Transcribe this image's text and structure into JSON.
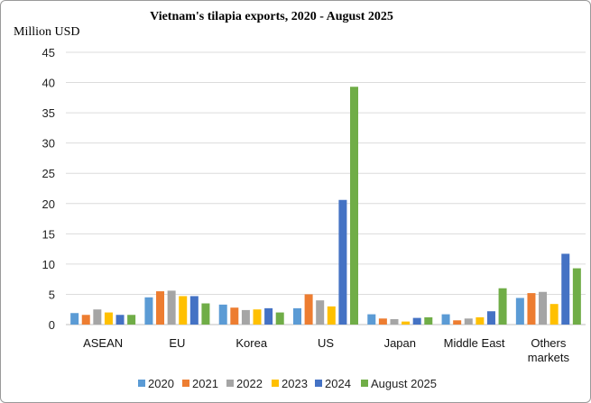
{
  "chart_data": {
    "type": "bar",
    "title": "Vietnam's tilapia exports, 2020 - August 2025",
    "ylabel": "Million USD",
    "xlabel": "",
    "ylim": [
      0,
      45
    ],
    "yticks": [
      0,
      5,
      10,
      15,
      20,
      25,
      30,
      35,
      40,
      45
    ],
    "grid": true,
    "legend_position": "bottom",
    "categories": [
      "ASEAN",
      "EU",
      "Korea",
      "US",
      "Japan",
      "Middle East",
      "Others markets"
    ],
    "series": [
      {
        "name": "2020",
        "color": "#5b9bd5",
        "values": [
          1.9,
          4.5,
          3.3,
          2.7,
          1.7,
          1.7,
          4.4
        ]
      },
      {
        "name": "2021",
        "color": "#ed7d31",
        "values": [
          1.6,
          5.5,
          2.8,
          5.0,
          1.0,
          0.7,
          5.2
        ]
      },
      {
        "name": "2022",
        "color": "#a5a5a5",
        "values": [
          2.5,
          5.6,
          2.4,
          4.0,
          0.9,
          1.0,
          5.4
        ]
      },
      {
        "name": "2023",
        "color": "#ffc000",
        "values": [
          2.0,
          4.7,
          2.5,
          3.0,
          0.5,
          1.2,
          3.4
        ]
      },
      {
        "name": "2024",
        "color": "#4472c4",
        "values": [
          1.6,
          4.7,
          2.7,
          20.6,
          1.1,
          2.2,
          11.7
        ]
      },
      {
        "name": "August 2025",
        "color": "#70ad47",
        "values": [
          1.6,
          3.5,
          2.0,
          39.3,
          1.2,
          6.0,
          9.3
        ]
      }
    ]
  }
}
